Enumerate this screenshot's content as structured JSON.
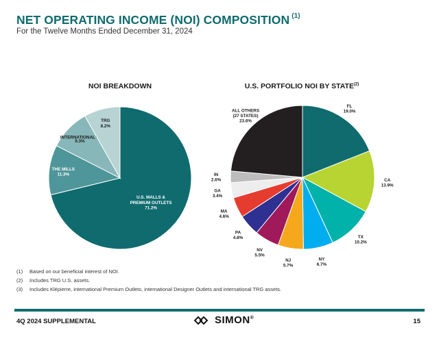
{
  "header": {
    "title": "NET OPERATING INCOME (NOI) COMPOSITION",
    "title_note": "(1)",
    "subtitle": "For the Twelve Months Ended December 31, 2024"
  },
  "chart_data": [
    {
      "type": "pie",
      "title": "NOI BREAKDOWN",
      "slices": [
        {
          "label": "U.S. MALLS & PREMIUM OUTLETS",
          "value": 71.2,
          "display": "71.2%",
          "color": "#0f6b6e"
        },
        {
          "label": "THE MILLS",
          "value": 11.3,
          "display": "11.3%",
          "color": "#4e9699"
        },
        {
          "label": "INTERNATIONAL",
          "note": "(3)",
          "value": 9.3,
          "display": "9.3%",
          "color": "#88b7b9"
        },
        {
          "label": "TRG",
          "value": 8.2,
          "display": "8.2%",
          "color": "#b7d3d3"
        }
      ]
    },
    {
      "type": "pie",
      "title": "U.S. PORTFOLIO NOI BY STATE",
      "title_note": "(2)",
      "slices": [
        {
          "label": "FL",
          "value": 19.0,
          "display": "19.0%",
          "color": "#0f6b6e"
        },
        {
          "label": "CA",
          "value": 13.9,
          "display": "13.9%",
          "color": "#b8d432"
        },
        {
          "label": "TX",
          "value": 10.2,
          "display": "10.2%",
          "color": "#00b2a9"
        },
        {
          "label": "NY",
          "value": 6.7,
          "display": "6.7%",
          "color": "#00aeef"
        },
        {
          "label": "NJ",
          "value": 5.7,
          "display": "5.7%",
          "color": "#f5a81c"
        },
        {
          "label": "NV",
          "value": 5.5,
          "display": "5.5%",
          "color": "#a0195a"
        },
        {
          "label": "PA",
          "value": 4.8,
          "display": "4.8%",
          "color": "#2e3192"
        },
        {
          "label": "MA",
          "value": 4.6,
          "display": "4.6%",
          "color": "#e63c2f"
        },
        {
          "label": "GA",
          "value": 3.4,
          "display": "3.4%",
          "color": "#ededed"
        },
        {
          "label": "IN",
          "value": 2.6,
          "display": "2.6%",
          "color": "#bdbdbd"
        },
        {
          "label": "ALL OTHERS (27 STATES)",
          "value": 23.6,
          "display": "23.6%",
          "color": "#231f20"
        }
      ]
    }
  ],
  "footnotes": [
    {
      "num": "(1)",
      "text": "Based on our beneficial interest of NOI."
    },
    {
      "num": "(2)",
      "text": "Includes TRG U.S. assets."
    },
    {
      "num": "(3)",
      "text": "Includes Klépierre, international Premium Outlets, international Designer Outlets and international TRG assets."
    }
  ],
  "footer": {
    "left": "4Q 2024 SUPPLEMENTAL",
    "logo": "SIMON",
    "logo_mark": "®",
    "page": "15"
  },
  "colors": {
    "brand": "#0f6b6e"
  }
}
